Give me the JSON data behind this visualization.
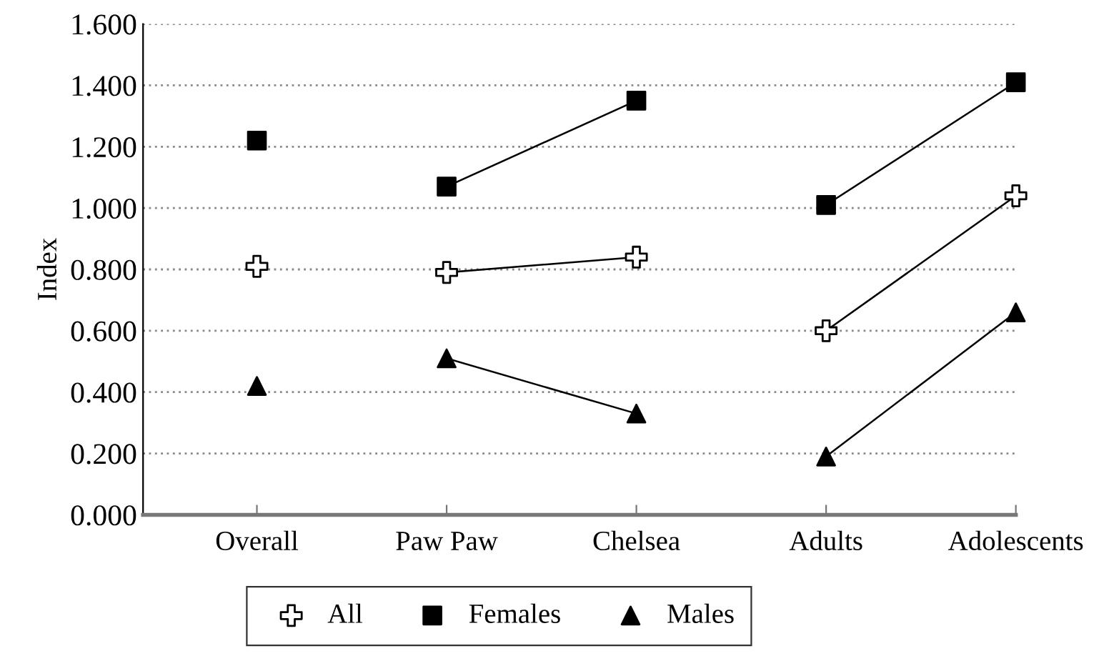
{
  "chart_data": {
    "type": "scatter",
    "ylabel": "Index",
    "categories": [
      "Overall",
      "Paw Paw",
      "Chelsea",
      "Adults",
      "Adolescents"
    ],
    "ylim": [
      0,
      1.6
    ],
    "yticks": [
      {
        "value": 0,
        "label": "0.000"
      },
      {
        "value": 0.2,
        "label": "0.200"
      },
      {
        "value": 0.4,
        "label": "0.400"
      },
      {
        "value": 0.6,
        "label": "0.600"
      },
      {
        "value": 0.8,
        "label": "0.800"
      },
      {
        "value": 1.0,
        "label": "1.000"
      },
      {
        "value": 1.2,
        "label": "1.200"
      },
      {
        "value": 1.4,
        "label": "1.400"
      },
      {
        "value": 1.6,
        "label": "1.600"
      }
    ],
    "grid": "y",
    "legend": "bottom",
    "series": [
      {
        "name": "All",
        "marker": "cross",
        "color": "#000000",
        "values": [
          0.81,
          0.79,
          0.84,
          0.6,
          1.04
        ]
      },
      {
        "name": "Females",
        "marker": "square",
        "color": "#000000",
        "values": [
          1.22,
          1.07,
          1.35,
          1.01,
          1.41
        ]
      },
      {
        "name": "Males",
        "marker": "triangle",
        "color": "#000000",
        "values": [
          0.42,
          0.51,
          0.33,
          0.19,
          0.66
        ]
      },
      {
        "type": "line",
        "marker": "none",
        "color": "#000000",
        "values": [
          null,
          0.79,
          0.84,
          null,
          null
        ]
      },
      {
        "type": "line",
        "marker": "none",
        "color": "#000000",
        "values": [
          null,
          1.07,
          1.35,
          null,
          null
        ]
      },
      {
        "type": "line",
        "marker": "none",
        "color": "#000000",
        "values": [
          null,
          0.51,
          0.33,
          null,
          null
        ]
      },
      {
        "type": "line",
        "marker": "none",
        "color": "#000000",
        "values": [
          null,
          null,
          null,
          0.6,
          1.04
        ]
      },
      {
        "type": "line",
        "marker": "none",
        "color": "#000000",
        "values": [
          null,
          null,
          null,
          1.01,
          1.41
        ]
      },
      {
        "type": "line",
        "marker": "none",
        "color": "#000000",
        "values": [
          null,
          null,
          null,
          0.19,
          0.66
        ]
      }
    ]
  }
}
